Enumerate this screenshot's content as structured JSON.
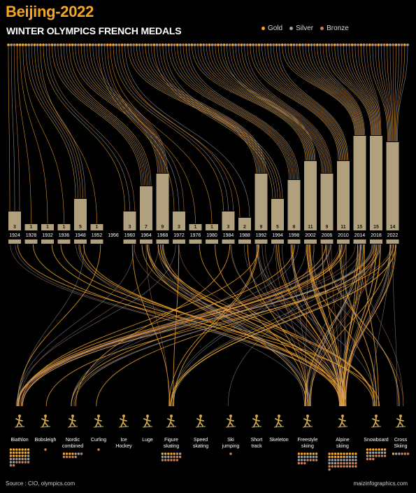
{
  "header": {
    "title": "Beijing-2022",
    "subtitle": "WINTER OLYMPICS FRENCH MEDALS"
  },
  "legend": [
    {
      "label": "Gold",
      "color": "#f5a623"
    },
    {
      "label": "Silver",
      "color": "#9aa0a8"
    },
    {
      "label": "Bronze",
      "color": "#c8825a"
    }
  ],
  "footer": {
    "source": "Source : CIO, olympics.com",
    "credit": "maizinfographics.com"
  },
  "colors": {
    "background": "#000000",
    "bar": "#b0a07e",
    "gold": "#f5a623",
    "silver": "#9aa0a8",
    "bronze": "#c8825a",
    "sport_icon": "#d4a94a"
  },
  "chart_data": {
    "type": "bar",
    "title": "WINTER OLYMPICS FRENCH MEDALS",
    "xlabel": "",
    "ylabel": "",
    "categories": [
      "1924",
      "1928",
      "1932",
      "1936",
      "1948",
      "1952",
      "1956",
      "1960",
      "1964",
      "1968",
      "1972",
      "1976",
      "1980",
      "1984",
      "1988",
      "1992",
      "1994",
      "1998",
      "2002",
      "2006",
      "2010",
      "2014",
      "2018",
      "2022"
    ],
    "values": [
      3,
      1,
      1,
      1,
      5,
      1,
      0,
      3,
      7,
      9,
      3,
      1,
      1,
      3,
      2,
      9,
      5,
      8,
      11,
      9,
      11,
      15,
      15,
      14
    ],
    "ylim": [
      0,
      15
    ],
    "value_labels": [
      "3",
      "1",
      "1",
      "1",
      "5",
      "1",
      "",
      "3",
      "7",
      "9",
      "3",
      "1",
      "1",
      "3",
      "2",
      "9",
      "5",
      "8",
      "11",
      "9",
      "11",
      "15",
      "15",
      "14"
    ],
    "sports": [
      {
        "name": "Biathlon",
        "icon": "biathlon-icon"
      },
      {
        "name": "Bobsleigh",
        "icon": "bobsleigh-icon"
      },
      {
        "name": "Nordic combined",
        "icon": "nordic-combined-icon"
      },
      {
        "name": "Curling",
        "icon": "curling-icon"
      },
      {
        "name": "Ice Hockey",
        "icon": "ice-hockey-icon"
      },
      {
        "name": "Luge",
        "icon": "luge-icon"
      },
      {
        "name": "Figure skating",
        "icon": "figure-skating-icon"
      },
      {
        "name": "Speed skating",
        "icon": "speed-skating-icon"
      },
      {
        "name": "Ski jumping",
        "icon": "ski-jumping-icon"
      },
      {
        "name": "Short track",
        "icon": "short-track-icon"
      },
      {
        "name": "Skeleton",
        "icon": "skeleton-icon"
      },
      {
        "name": "Freestyle skiing",
        "icon": "freestyle-skiing-icon"
      },
      {
        "name": "Alpine skiing",
        "icon": "alpine-skiing-icon"
      },
      {
        "name": "Snowboard",
        "icon": "snowboard-icon"
      },
      {
        "name": "Cross Skiing",
        "icon": "cross-skiing-icon"
      }
    ],
    "sport_medal_counts": [
      {
        "sport": "Biathlon",
        "gold": 20,
        "silver": 10,
        "bronze": 7
      },
      {
        "sport": "Bobsleigh",
        "gold": 0,
        "silver": 0,
        "bronze": 1
      },
      {
        "sport": "Nordic combined",
        "gold": 4,
        "silver": 2,
        "bronze": 6
      },
      {
        "sport": "Curling",
        "gold": 0,
        "silver": 0,
        "bronze": 1
      },
      {
        "sport": "Ice Hockey",
        "gold": 0,
        "silver": 0,
        "bronze": 0
      },
      {
        "sport": "Luge",
        "gold": 0,
        "silver": 0,
        "bronze": 0
      },
      {
        "sport": "Figure skating",
        "gold": 5,
        "silver": 5,
        "bronze": 10
      },
      {
        "sport": "Speed skating",
        "gold": 0,
        "silver": 0,
        "bronze": 0
      },
      {
        "sport": "Ski jumping",
        "gold": 0,
        "silver": 0,
        "bronze": 1
      },
      {
        "sport": "Short track",
        "gold": 0,
        "silver": 0,
        "bronze": 0
      },
      {
        "sport": "Skeleton",
        "gold": 0,
        "silver": 0,
        "bronze": 0
      },
      {
        "sport": "Freestyle skiing",
        "gold": 7,
        "silver": 10,
        "bronze": 7
      },
      {
        "sport": "Alpine skiing",
        "gold": 16,
        "silver": 17,
        "bronze": 18
      },
      {
        "sport": "Snowboard",
        "gold": 8,
        "silver": 8,
        "bronze": 8
      },
      {
        "sport": "Cross Skiing",
        "gold": 1,
        "silver": 2,
        "bronze": 3
      }
    ]
  }
}
